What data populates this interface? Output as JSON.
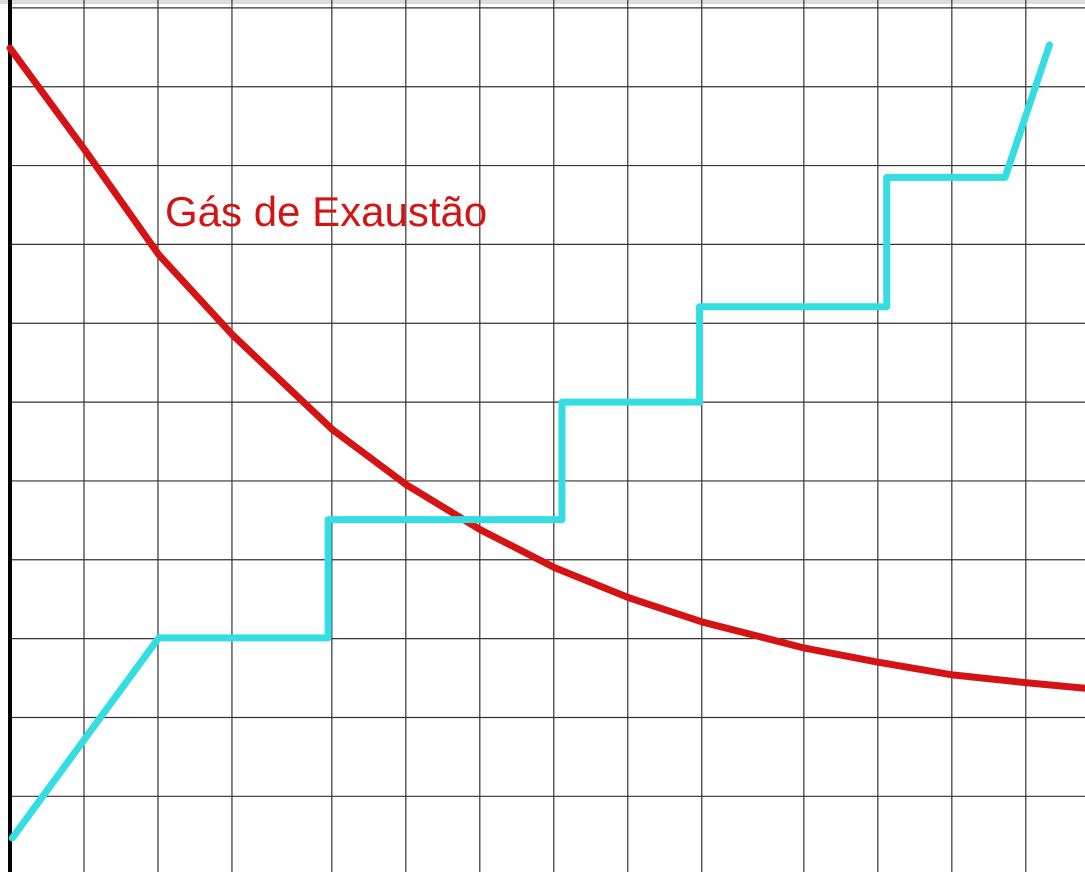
{
  "chart_data": {
    "type": "line",
    "annotations": [
      {
        "text": "Gás de Exaustão"
      }
    ],
    "series": [
      {
        "color": "#d41414",
        "x": [
          0,
          1.01,
          2.01,
          3.01,
          4.36,
          5.36,
          6.36,
          7.36,
          8.36,
          9.36,
          10.74,
          11.74,
          12.74,
          13.74,
          14.53
        ],
        "values": [
          10.49,
          9.2,
          7.87,
          6.85,
          5.65,
          4.95,
          4.38,
          3.9,
          3.52,
          3.21,
          2.88,
          2.7,
          2.54,
          2.44,
          2.37
        ]
      },
      {
        "color": "#33dde2",
        "x": [
          0.03,
          2.01,
          4.3,
          4.3,
          7.46,
          7.46,
          9.32,
          9.32,
          11.85,
          11.85,
          13.45,
          14.05
        ],
        "values": [
          0.47,
          3.01,
          3.01,
          4.51,
          4.51,
          6.0,
          6.0,
          7.21,
          7.21,
          8.85,
          8.85,
          10.53
        ]
      }
    ],
    "xlim": [
      0,
      14.53
    ],
    "ylim": [
      0.04,
      11.1
    ],
    "xticks": [
      0,
      1,
      2,
      3,
      4.35,
      5.35,
      6.35,
      7.35,
      8.35,
      9.35,
      10.73,
      11.73,
      12.73,
      13.73
    ],
    "yticks": [
      1,
      2,
      3,
      4,
      5,
      6,
      7,
      8,
      9,
      10,
      11
    ],
    "grid": true
  }
}
